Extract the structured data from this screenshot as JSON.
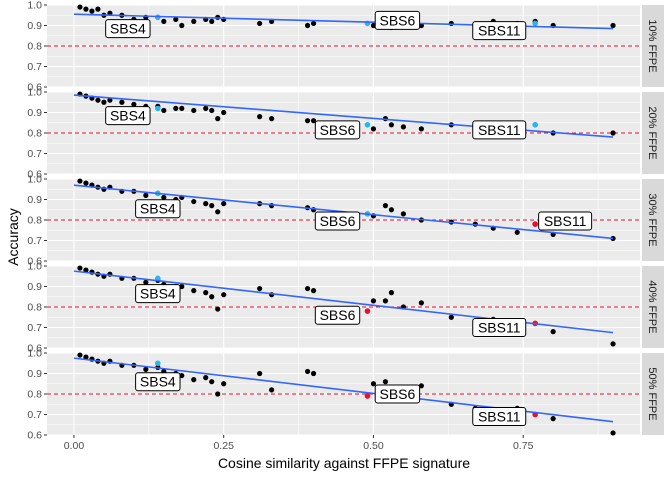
{
  "chart_data": {
    "type": "scatter",
    "xlabel": "Cosine similarity against FFPE signature",
    "ylabel": "Accuracy",
    "xlim": [
      -0.045,
      0.945
    ],
    "ylim": [
      0.6,
      1.0
    ],
    "x_ticks": [
      0.0,
      0.25,
      0.5,
      0.75
    ],
    "x_tick_labels": [
      "0.00",
      "0.25",
      "0.50",
      "0.75"
    ],
    "y_ticks": [
      0.6,
      0.7,
      0.8,
      0.9,
      1.0
    ],
    "y_tick_labels": [
      "0.6",
      "0.7",
      "0.8",
      "0.9",
      "1.0"
    ],
    "reference_line": 0.8,
    "colors": {
      "panel_bg": "#EBEBEB",
      "grid": "#FFFFFF",
      "point": "#000000",
      "highlight_blue": "#29B6E8",
      "highlight_red": "#E8112D",
      "trend": "#3366FF",
      "reference": "#E8112D",
      "strip_bg": "#D9D9D9",
      "label_bg": "#FFFFFF"
    },
    "base_x": [
      0.01,
      0.02,
      0.03,
      0.04,
      0.05,
      0.06,
      0.08,
      0.1,
      0.12,
      0.14,
      0.15,
      0.17,
      0.18,
      0.2,
      0.22,
      0.23,
      0.24,
      0.25,
      0.31,
      0.33,
      0.39,
      0.4,
      0.5,
      0.52,
      0.53,
      0.55,
      0.58,
      0.63,
      0.67,
      0.7,
      0.74,
      0.77,
      0.8,
      0.9
    ],
    "panels": [
      {
        "strip": "10% FFPE",
        "y": [
          0.99,
          0.98,
          0.97,
          0.98,
          0.95,
          0.96,
          0.95,
          0.93,
          0.94,
          0.94,
          0.92,
          0.93,
          0.9,
          0.92,
          0.93,
          0.92,
          0.94,
          0.93,
          0.91,
          0.92,
          0.9,
          0.91,
          0.9,
          0.91,
          0.89,
          0.92,
          0.9,
          0.91,
          0.9,
          0.92,
          0.91,
          0.92,
          0.9,
          0.9
        ],
        "trend": [
          [
            0.0,
            0.955
          ],
          [
            0.9,
            0.885
          ]
        ],
        "highlights": [
          {
            "name": "SBS4",
            "x": 0.14,
            "y": 0.94,
            "color": "blue"
          },
          {
            "name": "SBS6",
            "x": 0.49,
            "y": 0.91,
            "color": "blue"
          },
          {
            "name": "SBS11",
            "x": 0.77,
            "y": 0.91,
            "color": "blue"
          }
        ],
        "labels": [
          {
            "text": "SBS4",
            "x": 0.09,
            "y": 0.885
          },
          {
            "text": "SBS6",
            "x": 0.54,
            "y": 0.925
          },
          {
            "text": "SBS11",
            "x": 0.71,
            "y": 0.875
          }
        ]
      },
      {
        "strip": "20% FFPE",
        "y": [
          0.99,
          0.98,
          0.97,
          0.96,
          0.95,
          0.96,
          0.95,
          0.94,
          0.93,
          0.93,
          0.91,
          0.92,
          0.92,
          0.91,
          0.92,
          0.91,
          0.87,
          0.9,
          0.88,
          0.87,
          0.86,
          0.86,
          0.82,
          0.87,
          0.84,
          0.83,
          0.82,
          0.84,
          0.83,
          0.84,
          0.82,
          0.84,
          0.8,
          0.8
        ],
        "trend": [
          [
            0.0,
            0.985
          ],
          [
            0.9,
            0.78
          ]
        ],
        "highlights": [
          {
            "name": "SBS4",
            "x": 0.14,
            "y": 0.92,
            "color": "blue"
          },
          {
            "name": "SBS6",
            "x": 0.49,
            "y": 0.84,
            "color": "blue"
          },
          {
            "name": "SBS11",
            "x": 0.77,
            "y": 0.84,
            "color": "blue"
          }
        ],
        "labels": [
          {
            "text": "SBS4",
            "x": 0.09,
            "y": 0.885
          },
          {
            "text": "SBS6",
            "x": 0.44,
            "y": 0.815
          },
          {
            "text": "SBS11",
            "x": 0.71,
            "y": 0.815
          }
        ]
      },
      {
        "strip": "30% FFPE",
        "y": [
          0.99,
          0.98,
          0.97,
          0.96,
          0.95,
          0.96,
          0.94,
          0.94,
          0.92,
          0.93,
          0.91,
          0.9,
          0.91,
          0.89,
          0.88,
          0.87,
          0.84,
          0.88,
          0.88,
          0.87,
          0.86,
          0.85,
          0.82,
          0.87,
          0.85,
          0.83,
          0.8,
          0.79,
          0.78,
          0.76,
          0.74,
          0.78,
          0.73,
          0.71
        ],
        "trend": [
          [
            0.0,
            0.97
          ],
          [
            0.9,
            0.71
          ]
        ],
        "highlights": [
          {
            "name": "SBS4",
            "x": 0.14,
            "y": 0.93,
            "color": "blue"
          },
          {
            "name": "SBS6",
            "x": 0.49,
            "y": 0.83,
            "color": "blue"
          },
          {
            "name": "SBS11",
            "x": 0.77,
            "y": 0.78,
            "color": "red"
          }
        ],
        "labels": [
          {
            "text": "SBS4",
            "x": 0.14,
            "y": 0.855
          },
          {
            "text": "SBS6",
            "x": 0.44,
            "y": 0.795
          },
          {
            "text": "SBS11",
            "x": 0.82,
            "y": 0.795
          }
        ]
      },
      {
        "strip": "40% FFPE",
        "y": [
          0.99,
          0.98,
          0.97,
          0.96,
          0.95,
          0.96,
          0.94,
          0.94,
          0.92,
          0.93,
          0.91,
          0.9,
          0.9,
          0.88,
          0.87,
          0.85,
          0.79,
          0.86,
          0.89,
          0.86,
          0.89,
          0.88,
          0.83,
          0.83,
          0.87,
          0.8,
          0.82,
          0.75,
          0.73,
          0.74,
          0.73,
          0.72,
          0.68,
          0.62
        ],
        "trend": [
          [
            0.0,
            0.975
          ],
          [
            0.9,
            0.675
          ]
        ],
        "highlights": [
          {
            "name": "SBS4",
            "x": 0.14,
            "y": 0.94,
            "color": "blue"
          },
          {
            "name": "SBS6",
            "x": 0.49,
            "y": 0.78,
            "color": "red"
          },
          {
            "name": "SBS11",
            "x": 0.77,
            "y": 0.72,
            "color": "red"
          }
        ],
        "labels": [
          {
            "text": "SBS4",
            "x": 0.14,
            "y": 0.865
          },
          {
            "text": "SBS6",
            "x": 0.44,
            "y": 0.76
          },
          {
            "text": "SBS11",
            "x": 0.71,
            "y": 0.7
          }
        ]
      },
      {
        "strip": "50% FFPE",
        "y": [
          0.99,
          0.98,
          0.97,
          0.96,
          0.95,
          0.96,
          0.94,
          0.94,
          0.92,
          0.93,
          0.91,
          0.9,
          0.89,
          0.87,
          0.88,
          0.86,
          0.8,
          0.85,
          0.9,
          0.82,
          0.91,
          0.9,
          0.85,
          0.86,
          0.8,
          0.82,
          0.84,
          0.75,
          0.73,
          0.72,
          0.73,
          0.7,
          0.68,
          0.61
        ],
        "trend": [
          [
            0.0,
            0.975
          ],
          [
            0.9,
            0.665
          ]
        ],
        "highlights": [
          {
            "name": "SBS4",
            "x": 0.14,
            "y": 0.95,
            "color": "blue"
          },
          {
            "name": "SBS6",
            "x": 0.49,
            "y": 0.79,
            "color": "red"
          },
          {
            "name": "SBS11",
            "x": 0.77,
            "y": 0.7,
            "color": "red"
          }
        ],
        "labels": [
          {
            "text": "SBS4",
            "x": 0.14,
            "y": 0.86
          },
          {
            "text": "SBS6",
            "x": 0.54,
            "y": 0.8
          },
          {
            "text": "SBS11",
            "x": 0.71,
            "y": 0.69
          }
        ]
      }
    ]
  }
}
